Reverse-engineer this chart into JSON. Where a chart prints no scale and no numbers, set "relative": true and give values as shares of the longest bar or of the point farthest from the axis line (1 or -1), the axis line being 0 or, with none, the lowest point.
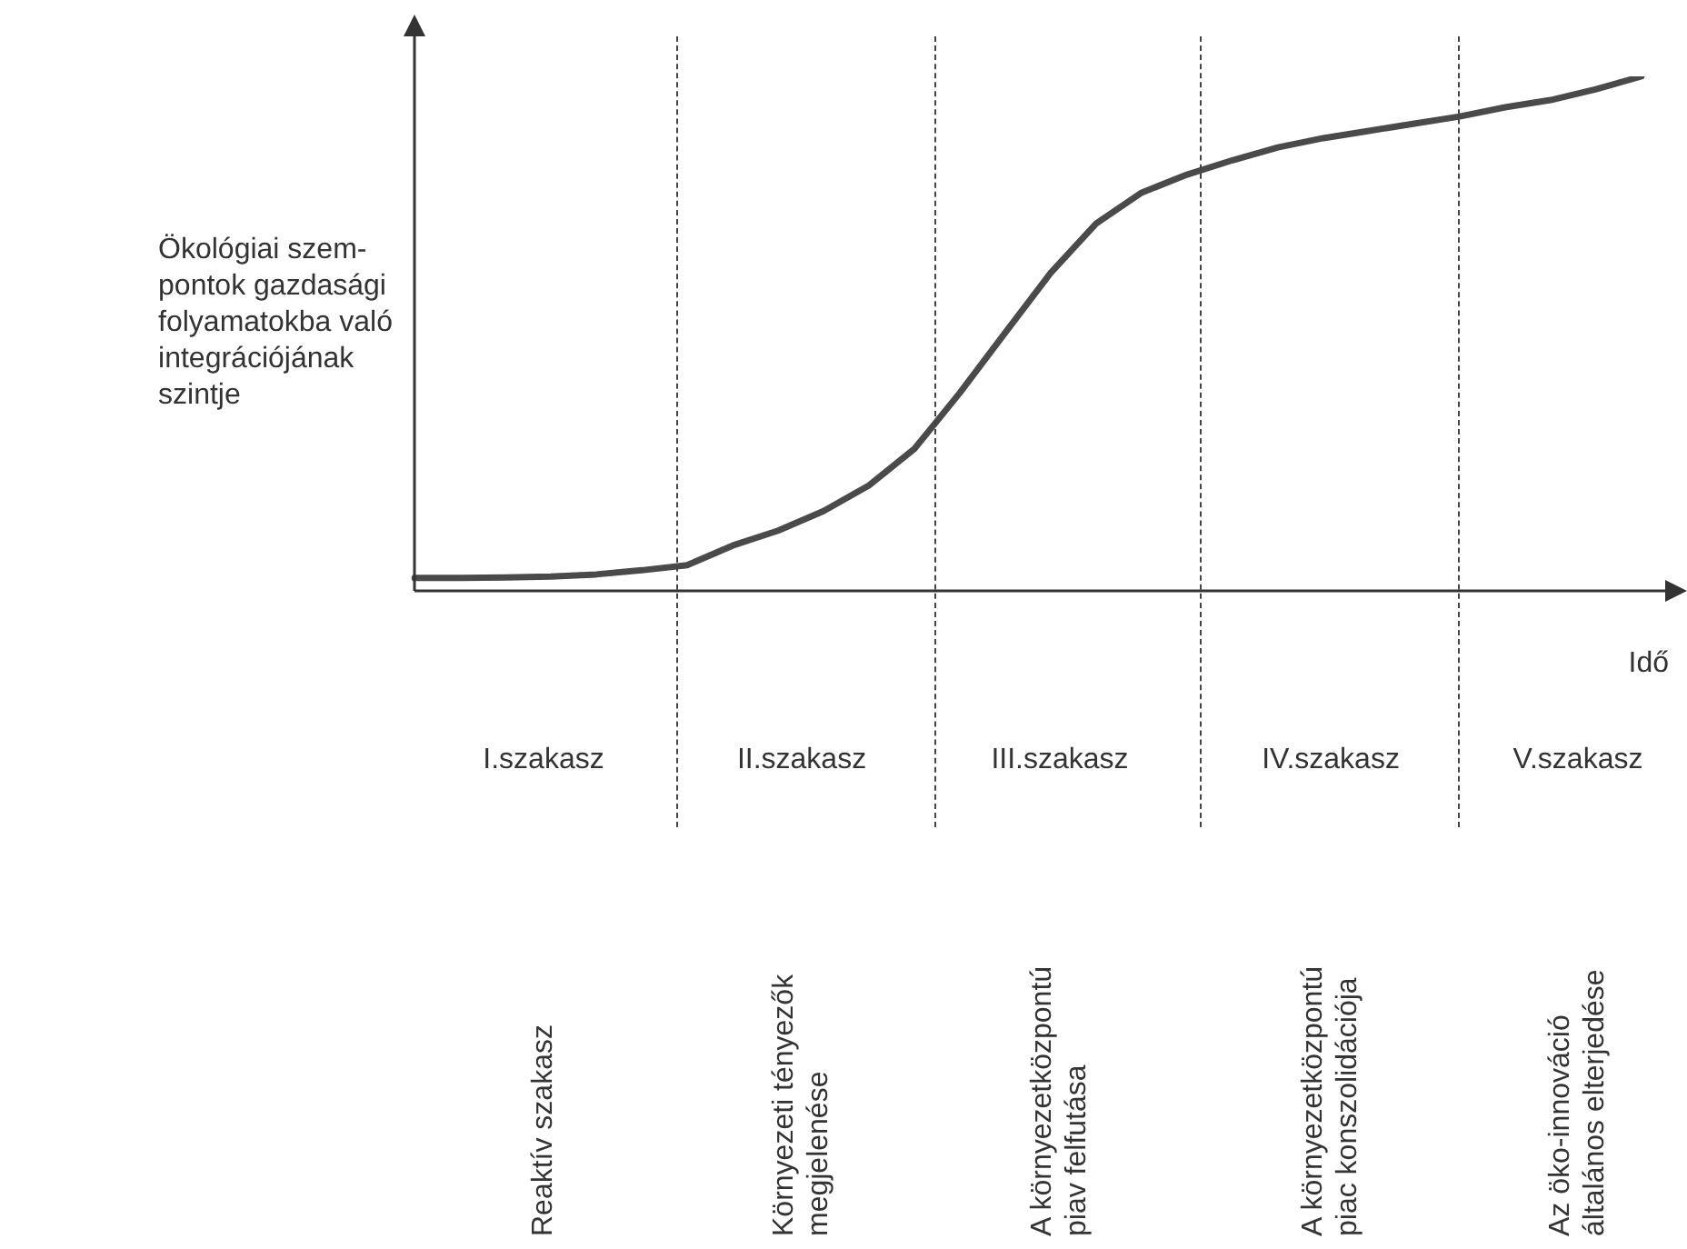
{
  "chart_data": {
    "type": "line",
    "relative": true,
    "ylabel": "Ökológiai szem-\npontok gazdasági\nfolyamatokba való\nintegrációjának\nszintje",
    "xlabel": "Idő",
    "legend": false,
    "marker": "none",
    "line_style": "solid",
    "categories": [
      null,
      null,
      null,
      null,
      null,
      null,
      null,
      null,
      null,
      null,
      null,
      null,
      null,
      null,
      null,
      null,
      null,
      null,
      null,
      null,
      null,
      null,
      null,
      null,
      null,
      null,
      null,
      null
    ],
    "series": [
      {
        "color": "#4a4a4a",
        "values": [
          0.025,
          0.025,
          0.026,
          0.028,
          0.032,
          0.04,
          0.05,
          0.088,
          0.117,
          0.155,
          0.205,
          0.276,
          0.385,
          0.502,
          0.618,
          0.714,
          0.774,
          0.809,
          0.837,
          0.862,
          0.88,
          0.894,
          0.908,
          0.922,
          0.94,
          0.954,
          0.975,
          1
        ]
      }
    ],
    "annotations": [
      "I.szakasz",
      "II.szakasz",
      "III.szakasz",
      "IV.szakasz",
      "V.szakasz",
      "Reaktív szakasz",
      "Környezeti tényezők\nmegjelenése",
      "A környezetközpontú\npiav felfutása",
      "A környezetközpontú\npiac konszolidációja",
      "Az öko-innováció\náltalános elterjedése"
    ]
  }
}
